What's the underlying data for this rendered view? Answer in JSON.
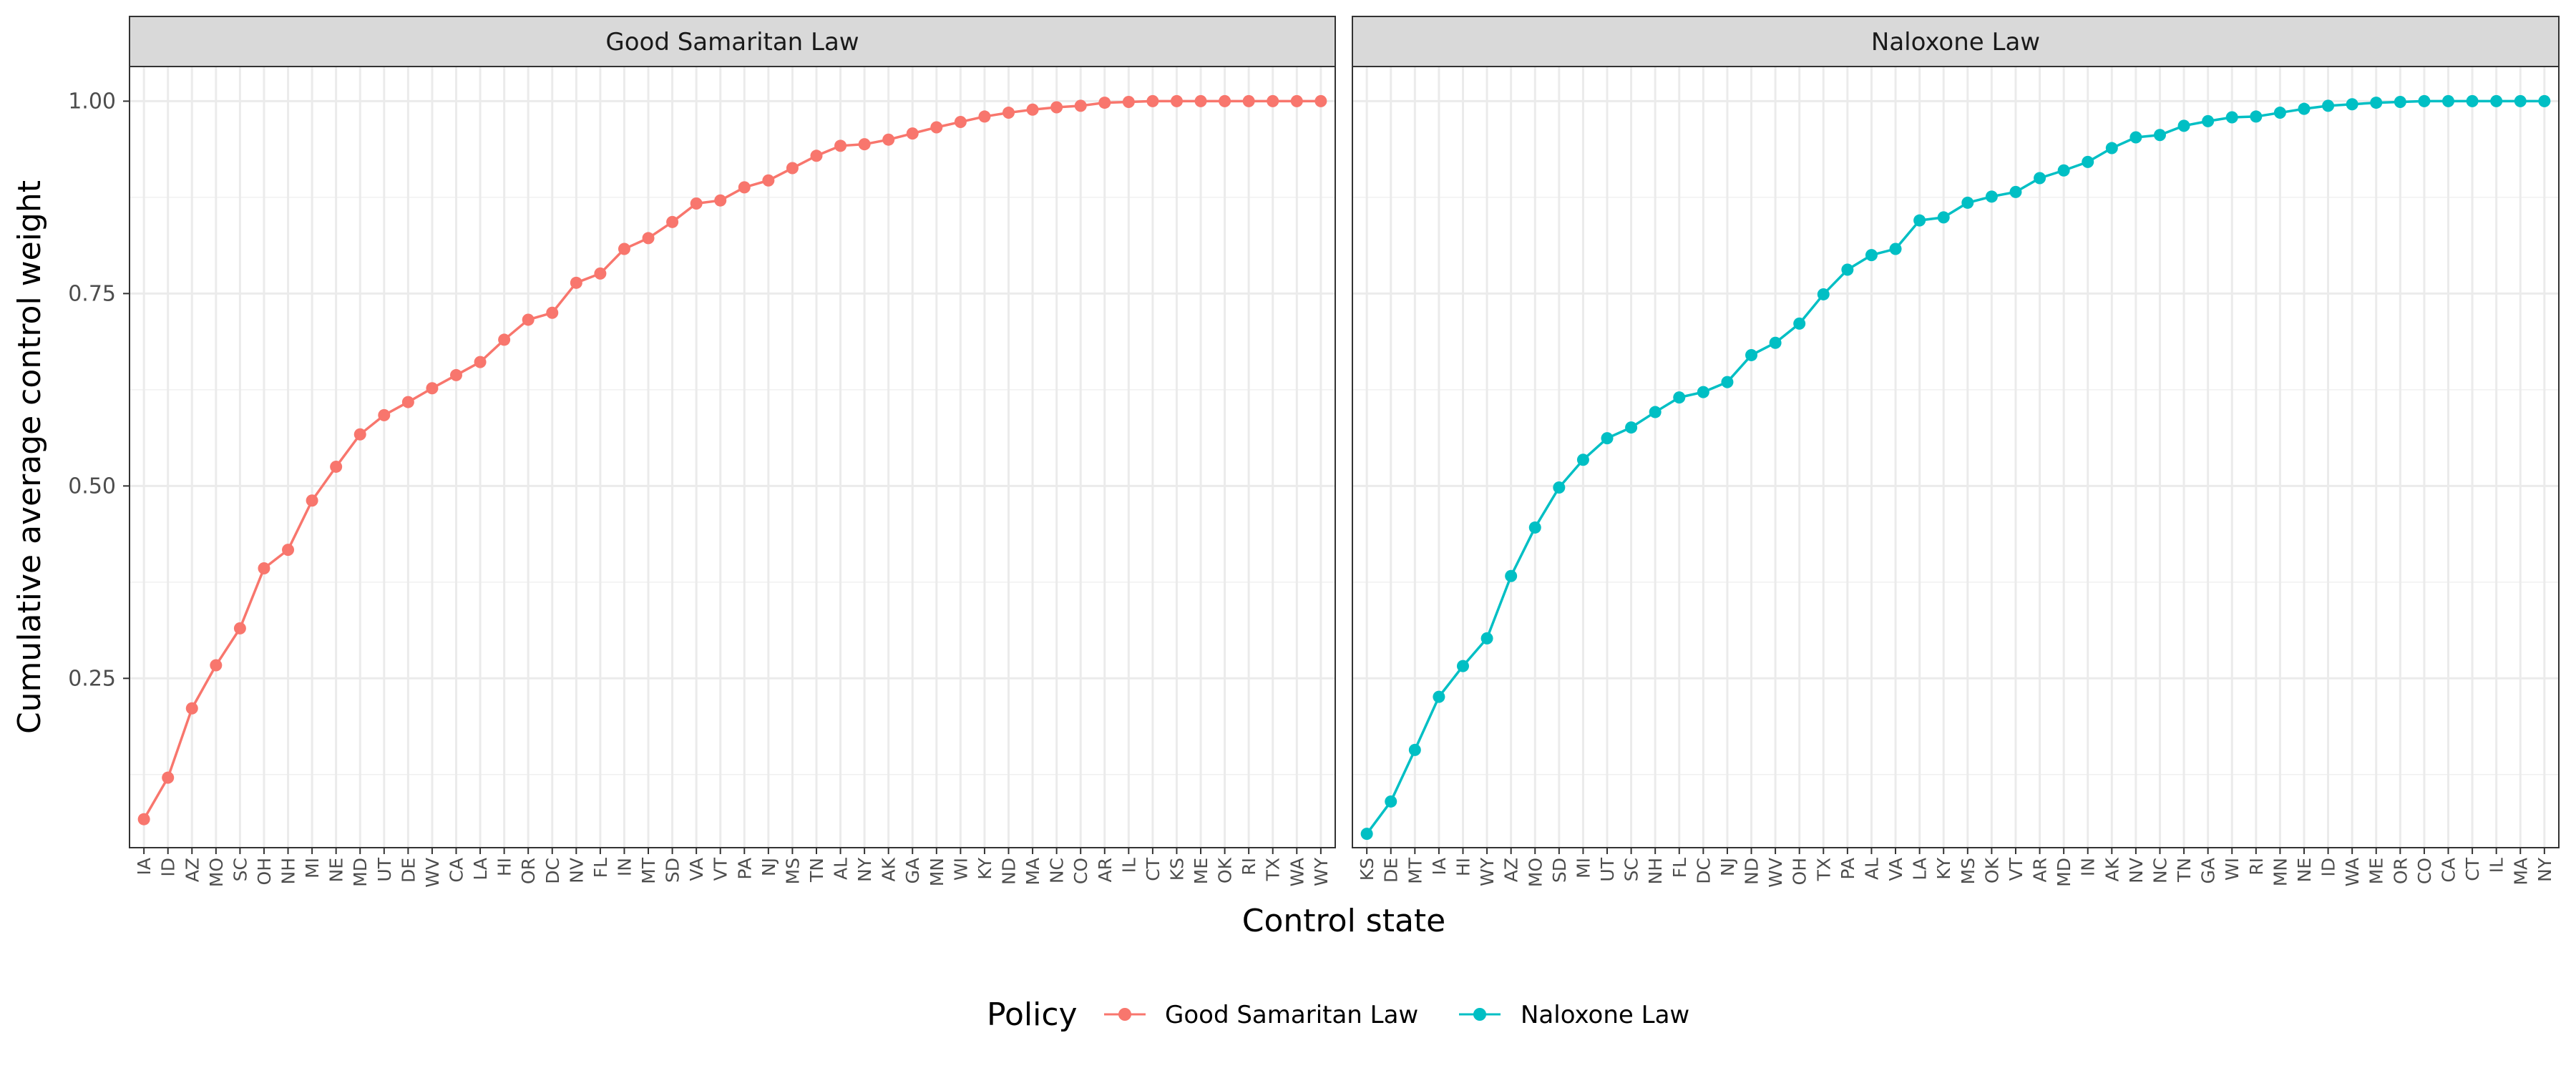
{
  "chart_data": {
    "type": "line",
    "xlabel": "Control state",
    "ylabel": "Cumulative average control weight",
    "y_ticks": [
      "0.25",
      "0.50",
      "0.75",
      "1.00"
    ],
    "y_tick_values": [
      0.25,
      0.5,
      0.75,
      1.0
    ],
    "ylim": [
      0.03,
      1.045
    ],
    "grid": true,
    "legend": {
      "title": "Policy",
      "placement": "bottom",
      "entries": [
        "Good Samaritan Law",
        "Naloxone Law"
      ]
    },
    "colors": {
      "Good Samaritan Law": "#F8766D",
      "Naloxone Law": "#00BFC4"
    },
    "panels": [
      {
        "title": "Good Samaritan Law",
        "series_name": "Good Samaritan Law",
        "categories": [
          "IA",
          "ID",
          "AZ",
          "MO",
          "SC",
          "OH",
          "NH",
          "MI",
          "NE",
          "MD",
          "UT",
          "DE",
          "WV",
          "CA",
          "LA",
          "HI",
          "OR",
          "DC",
          "NV",
          "FL",
          "IN",
          "MT",
          "SD",
          "VA",
          "VT",
          "PA",
          "NJ",
          "MS",
          "TN",
          "AL",
          "NY",
          "AK",
          "GA",
          "MN",
          "WI",
          "KY",
          "ND",
          "MA",
          "NC",
          "CO",
          "AR",
          "IL",
          "CT",
          "KS",
          "ME",
          "OK",
          "RI",
          "TX",
          "WA",
          "WY"
        ],
        "values": [
          0.067,
          0.121,
          0.211,
          0.267,
          0.315,
          0.393,
          0.417,
          0.481,
          0.525,
          0.567,
          0.592,
          0.609,
          0.627,
          0.644,
          0.661,
          0.69,
          0.716,
          0.725,
          0.764,
          0.776,
          0.808,
          0.822,
          0.843,
          0.867,
          0.871,
          0.888,
          0.897,
          0.913,
          0.929,
          0.942,
          0.944,
          0.95,
          0.958,
          0.966,
          0.973,
          0.98,
          0.985,
          0.989,
          0.992,
          0.994,
          0.998,
          0.999,
          1.0,
          1.0,
          1.0,
          1.0,
          1.0,
          1.0,
          1.0,
          1.0
        ]
      },
      {
        "title": "Naloxone Law",
        "series_name": "Naloxone Law",
        "categories": [
          "KS",
          "DE",
          "MT",
          "IA",
          "HI",
          "WY",
          "AZ",
          "MO",
          "SD",
          "MI",
          "UT",
          "SC",
          "NH",
          "FL",
          "DC",
          "NJ",
          "ND",
          "WV",
          "OH",
          "TX",
          "PA",
          "AL",
          "VA",
          "LA",
          "KY",
          "MS",
          "OK",
          "VT",
          "AR",
          "MD",
          "IN",
          "AK",
          "NV",
          "NC",
          "TN",
          "GA",
          "WI",
          "RI",
          "MN",
          "NE",
          "ID",
          "WA",
          "ME",
          "OR",
          "CO",
          "CA",
          "CT",
          "IL",
          "MA",
          "NY"
        ],
        "values": [
          0.048,
          0.09,
          0.157,
          0.226,
          0.266,
          0.302,
          0.383,
          0.446,
          0.498,
          0.534,
          0.562,
          0.576,
          0.596,
          0.615,
          0.622,
          0.635,
          0.67,
          0.686,
          0.711,
          0.749,
          0.781,
          0.8,
          0.808,
          0.845,
          0.849,
          0.868,
          0.876,
          0.882,
          0.9,
          0.91,
          0.921,
          0.939,
          0.953,
          0.956,
          0.968,
          0.974,
          0.979,
          0.98,
          0.985,
          0.99,
          0.994,
          0.996,
          0.998,
          0.999,
          1.0,
          1.0,
          1.0,
          1.0,
          1.0,
          1.0
        ]
      }
    ]
  }
}
